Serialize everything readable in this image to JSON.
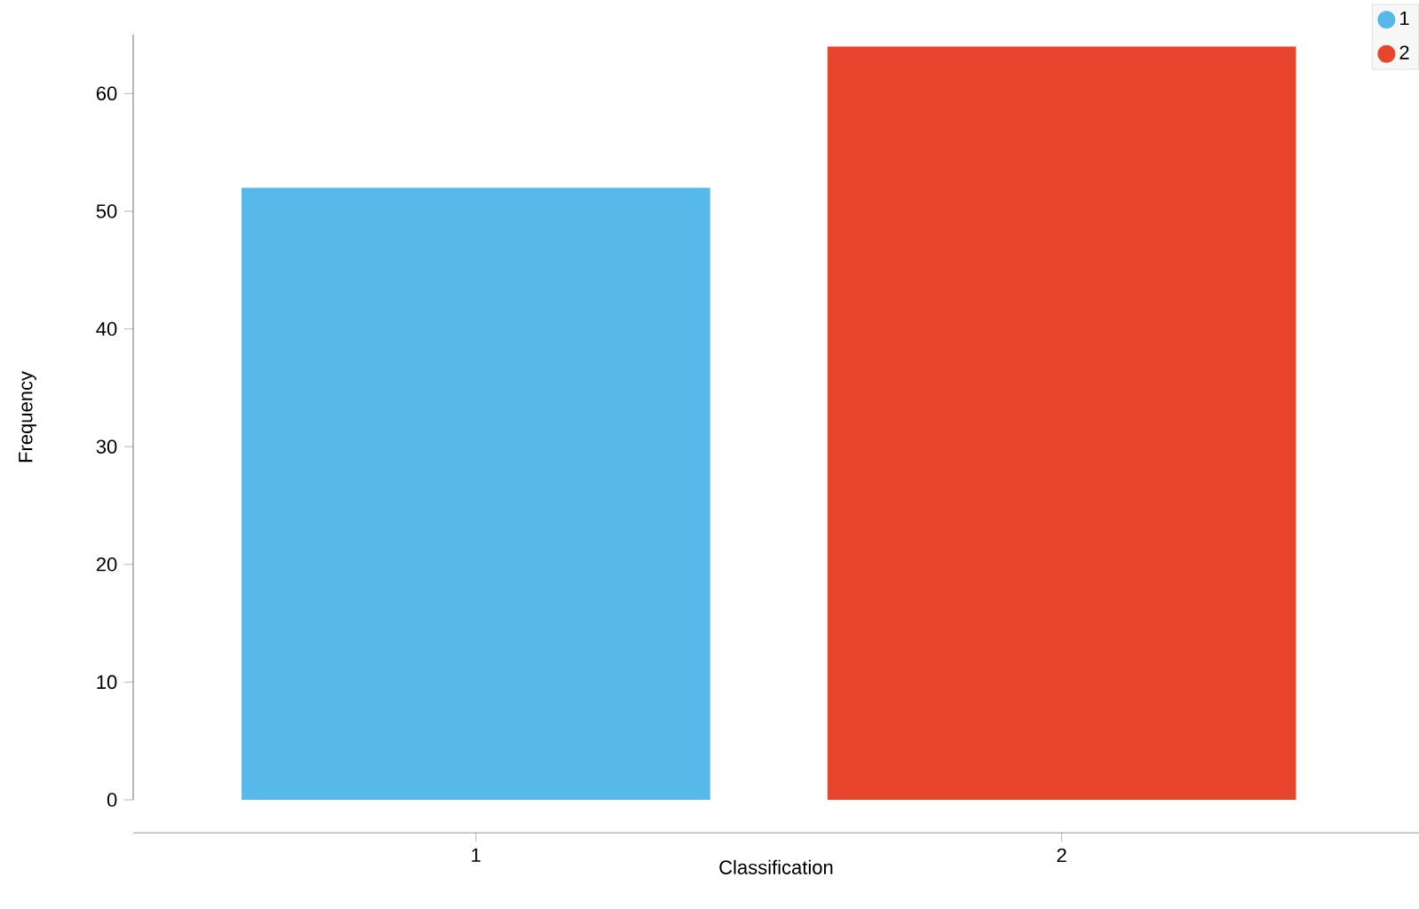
{
  "chart_data": {
    "type": "bar",
    "xlabel": "Classification",
    "ylabel": "Frequency",
    "categories": [
      "1",
      "2"
    ],
    "series": [
      {
        "name": "1",
        "color": "#56b9e9",
        "values": [
          52,
          null
        ]
      },
      {
        "name": "2",
        "color": "#e9452d",
        "values": [
          null,
          64
        ]
      }
    ],
    "ylim": [
      0,
      65
    ],
    "yticks": [
      0,
      10,
      20,
      30,
      40,
      50,
      60
    ],
    "legend": "top right"
  }
}
